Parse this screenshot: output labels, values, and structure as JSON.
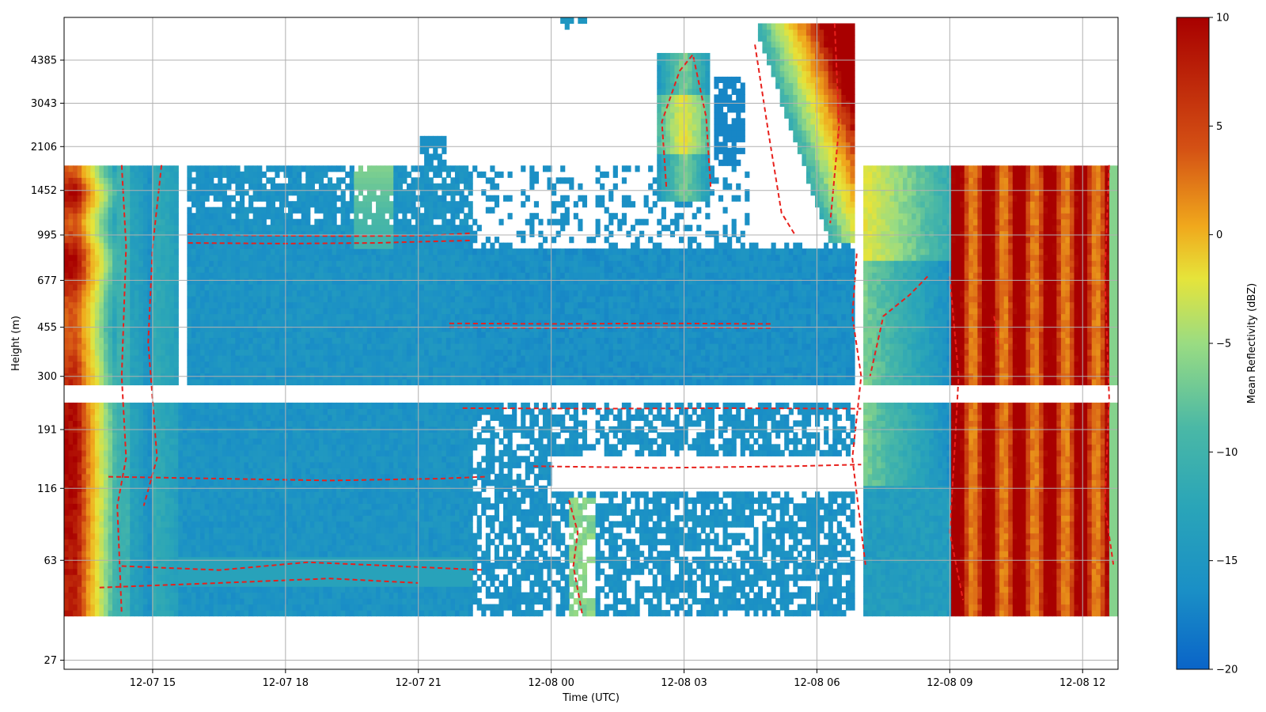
{
  "chart_data": {
    "type": "heatmap",
    "title": "",
    "xlabel": "Time (UTC)",
    "ylabel": "Height (m)",
    "x_ticks": [
      "12-07 15",
      "12-07 18",
      "12-07 21",
      "12-08 00",
      "12-08 03",
      "12-08 06",
      "12-08 09",
      "12-08 12"
    ],
    "x_tick_hours": [
      15,
      18,
      21,
      24,
      27,
      30,
      33,
      36
    ],
    "xlim_hours": [
      13.0,
      36.8
    ],
    "y_ticks": [
      "27",
      "63",
      "116",
      "191",
      "300",
      "455",
      "677",
      "995",
      "1452",
      "2106",
      "3043",
      "4385"
    ],
    "y_scale": "log",
    "ylim": [
      25,
      6300
    ],
    "grid": true,
    "colorbar": {
      "label": "Mean Reflectivity (dBZ)",
      "ticks": [
        "10",
        "5",
        "0",
        "−5",
        "−10",
        "−15",
        "−20"
      ],
      "tick_values": [
        10,
        5,
        0,
        -5,
        -10,
        -15,
        -20
      ],
      "range": [
        -20,
        10
      ],
      "colormap": [
        "#0a64c8",
        "#1a8fc6",
        "#2aa5b8",
        "#4ab8a6",
        "#9adc82",
        "#e6e43a",
        "#f0a81c",
        "#d45014",
        "#a80000"
      ]
    },
    "contour_style": {
      "color": "#e8201c",
      "linestyle": "dashed"
    },
    "regions": [
      {
        "t": [
          13.0,
          15.6
        ],
        "h": [
          40,
          1800
        ],
        "dbz": -12
      },
      {
        "t": [
          13.0,
          14.0
        ],
        "h": [
          40,
          1800
        ],
        "dbz": 7
      },
      {
        "t": [
          15.8,
          22.2
        ],
        "h": [
          40,
          1800
        ],
        "dbz": -16
      },
      {
        "t": [
          22.2,
          30.8
        ],
        "h": [
          40,
          870
        ],
        "dbz": -17
      },
      {
        "t": [
          26.5,
          27.5
        ],
        "h": [
          1500,
          4500
        ],
        "dbz": -8
      },
      {
        "t": [
          28.5,
          30.8
        ],
        "h": [
          1000,
          6000
        ],
        "dbz": -5
      },
      {
        "t": [
          30.9,
          33.0
        ],
        "h": [
          40,
          1800
        ],
        "dbz": -6
      },
      {
        "t": [
          33.0,
          36.8
        ],
        "h": [
          40,
          1800
        ],
        "dbz": 8
      }
    ]
  }
}
